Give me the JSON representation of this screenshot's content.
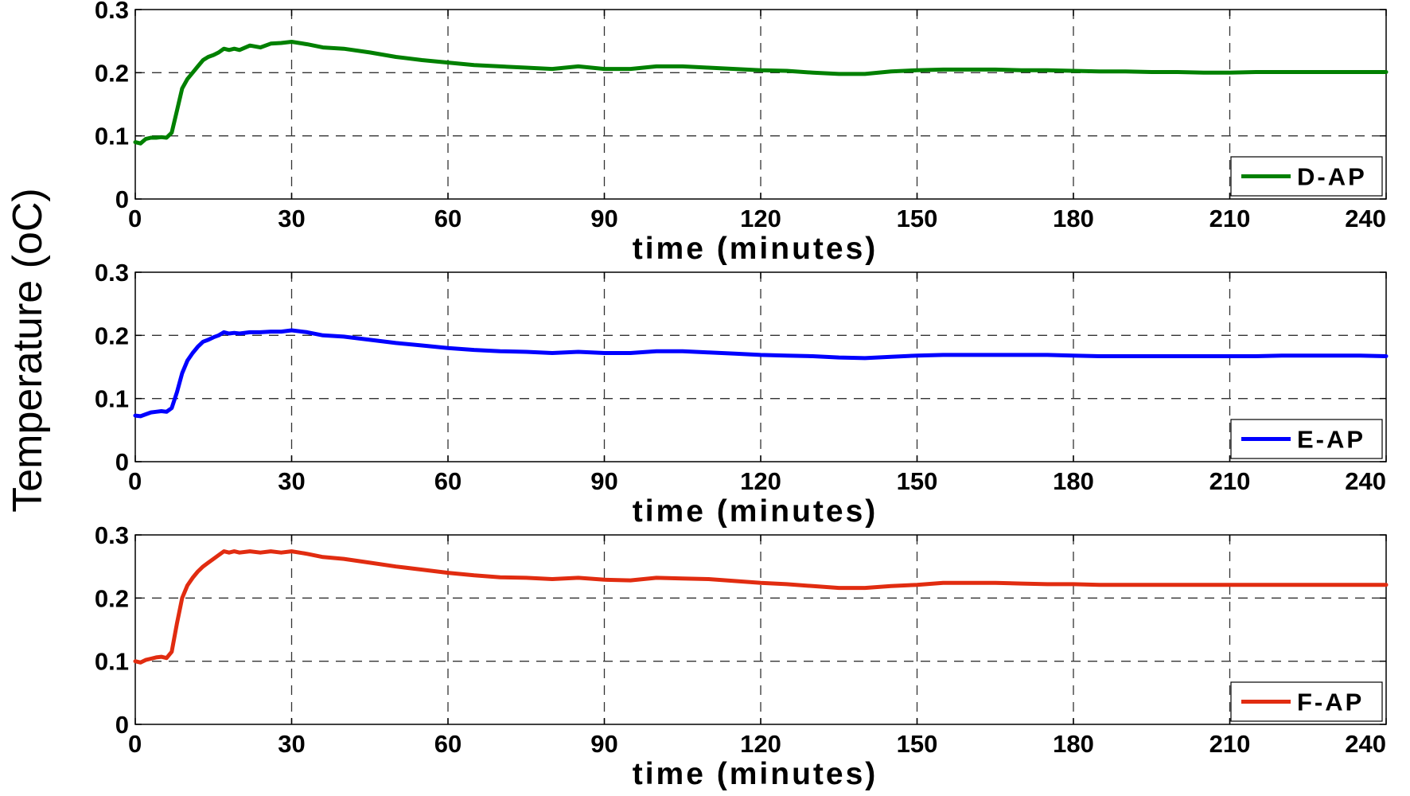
{
  "ylabel": "Temperature (oC)",
  "chart_data": [
    {
      "type": "line",
      "xlabel": "time (minutes)",
      "xlim": [
        0,
        240
      ],
      "ylim": [
        0,
        0.3
      ],
      "xticks": [
        0,
        30,
        60,
        90,
        120,
        150,
        180,
        210,
        240
      ],
      "yticks": [
        0,
        0.1,
        0.2,
        0.3
      ],
      "grid": true,
      "legend_position": "bottom-right",
      "series": [
        {
          "name": "D-AP",
          "color": "#008000",
          "x": [
            0,
            1,
            2,
            3,
            4,
            5,
            6,
            7,
            8,
            9,
            10,
            11,
            12,
            13,
            14,
            15,
            16,
            17,
            18,
            19,
            20,
            22,
            24,
            26,
            28,
            30,
            33,
            36,
            40,
            45,
            50,
            55,
            60,
            65,
            70,
            75,
            80,
            85,
            90,
            95,
            100,
            105,
            110,
            115,
            120,
            125,
            130,
            135,
            140,
            145,
            150,
            155,
            160,
            165,
            170,
            175,
            180,
            185,
            190,
            195,
            200,
            205,
            210,
            215,
            220,
            225,
            230,
            235,
            240
          ],
          "y": [
            0.09,
            0.088,
            0.095,
            0.097,
            0.097,
            0.098,
            0.097,
            0.105,
            0.14,
            0.175,
            0.19,
            0.2,
            0.21,
            0.22,
            0.225,
            0.228,
            0.232,
            0.238,
            0.236,
            0.238,
            0.236,
            0.243,
            0.24,
            0.246,
            0.247,
            0.249,
            0.245,
            0.24,
            0.238,
            0.232,
            0.225,
            0.22,
            0.216,
            0.212,
            0.21,
            0.208,
            0.206,
            0.21,
            0.206,
            0.206,
            0.21,
            0.21,
            0.208,
            0.206,
            0.204,
            0.203,
            0.2,
            0.198,
            0.198,
            0.202,
            0.204,
            0.205,
            0.205,
            0.205,
            0.204,
            0.204,
            0.203,
            0.202,
            0.202,
            0.201,
            0.201,
            0.2,
            0.2,
            0.201,
            0.201,
            0.201,
            0.201,
            0.201,
            0.201
          ]
        }
      ]
    },
    {
      "type": "line",
      "xlabel": "time (minutes)",
      "xlim": [
        0,
        240
      ],
      "ylim": [
        0,
        0.3
      ],
      "xticks": [
        0,
        30,
        60,
        90,
        120,
        150,
        180,
        210,
        240
      ],
      "yticks": [
        0,
        0.1,
        0.2,
        0.3
      ],
      "grid": true,
      "legend_position": "bottom-right",
      "series": [
        {
          "name": "E-AP",
          "color": "#0000ff",
          "x": [
            0,
            1,
            2,
            3,
            4,
            5,
            6,
            7,
            8,
            9,
            10,
            11,
            12,
            13,
            14,
            15,
            16,
            17,
            18,
            19,
            20,
            22,
            24,
            26,
            28,
            30,
            33,
            36,
            40,
            45,
            50,
            55,
            60,
            65,
            70,
            75,
            80,
            85,
            90,
            95,
            100,
            105,
            110,
            115,
            120,
            125,
            130,
            135,
            140,
            145,
            150,
            155,
            160,
            165,
            170,
            175,
            180,
            185,
            190,
            195,
            200,
            205,
            210,
            215,
            220,
            225,
            230,
            235,
            240
          ],
          "y": [
            0.073,
            0.072,
            0.075,
            0.078,
            0.079,
            0.08,
            0.079,
            0.085,
            0.11,
            0.14,
            0.16,
            0.172,
            0.182,
            0.19,
            0.193,
            0.197,
            0.2,
            0.205,
            0.203,
            0.204,
            0.203,
            0.205,
            0.205,
            0.206,
            0.206,
            0.208,
            0.205,
            0.2,
            0.198,
            0.193,
            0.188,
            0.184,
            0.18,
            0.177,
            0.175,
            0.174,
            0.172,
            0.174,
            0.172,
            0.172,
            0.175,
            0.175,
            0.173,
            0.171,
            0.169,
            0.168,
            0.167,
            0.165,
            0.164,
            0.166,
            0.168,
            0.169,
            0.169,
            0.169,
            0.169,
            0.169,
            0.168,
            0.167,
            0.167,
            0.167,
            0.167,
            0.167,
            0.167,
            0.167,
            0.168,
            0.168,
            0.168,
            0.168,
            0.167
          ]
        }
      ]
    },
    {
      "type": "line",
      "xlabel": "time (minutes)",
      "xlim": [
        0,
        240
      ],
      "ylim": [
        0,
        0.3
      ],
      "xticks": [
        0,
        30,
        60,
        90,
        120,
        150,
        180,
        210,
        240
      ],
      "yticks": [
        0,
        0.1,
        0.2,
        0.3
      ],
      "grid": true,
      "legend_position": "bottom-right",
      "series": [
        {
          "name": "F-AP",
          "color": "#e12c10",
          "x": [
            0,
            1,
            2,
            3,
            4,
            5,
            6,
            7,
            8,
            9,
            10,
            11,
            12,
            13,
            14,
            15,
            16,
            17,
            18,
            19,
            20,
            22,
            24,
            26,
            28,
            30,
            33,
            36,
            40,
            45,
            50,
            55,
            60,
            65,
            70,
            75,
            80,
            85,
            90,
            95,
            100,
            105,
            110,
            115,
            120,
            125,
            130,
            135,
            140,
            145,
            150,
            155,
            160,
            165,
            170,
            175,
            180,
            185,
            190,
            195,
            200,
            205,
            210,
            215,
            220,
            225,
            230,
            235,
            240
          ],
          "y": [
            0.1,
            0.098,
            0.102,
            0.104,
            0.106,
            0.107,
            0.105,
            0.115,
            0.16,
            0.2,
            0.22,
            0.232,
            0.242,
            0.25,
            0.256,
            0.262,
            0.268,
            0.274,
            0.272,
            0.274,
            0.272,
            0.274,
            0.272,
            0.274,
            0.272,
            0.274,
            0.27,
            0.265,
            0.262,
            0.256,
            0.25,
            0.245,
            0.24,
            0.236,
            0.233,
            0.232,
            0.23,
            0.232,
            0.229,
            0.228,
            0.232,
            0.231,
            0.23,
            0.227,
            0.224,
            0.222,
            0.219,
            0.216,
            0.216,
            0.219,
            0.221,
            0.224,
            0.224,
            0.224,
            0.223,
            0.222,
            0.222,
            0.221,
            0.221,
            0.221,
            0.221,
            0.221,
            0.221,
            0.221,
            0.221,
            0.221,
            0.221,
            0.221,
            0.221
          ]
        }
      ]
    }
  ]
}
